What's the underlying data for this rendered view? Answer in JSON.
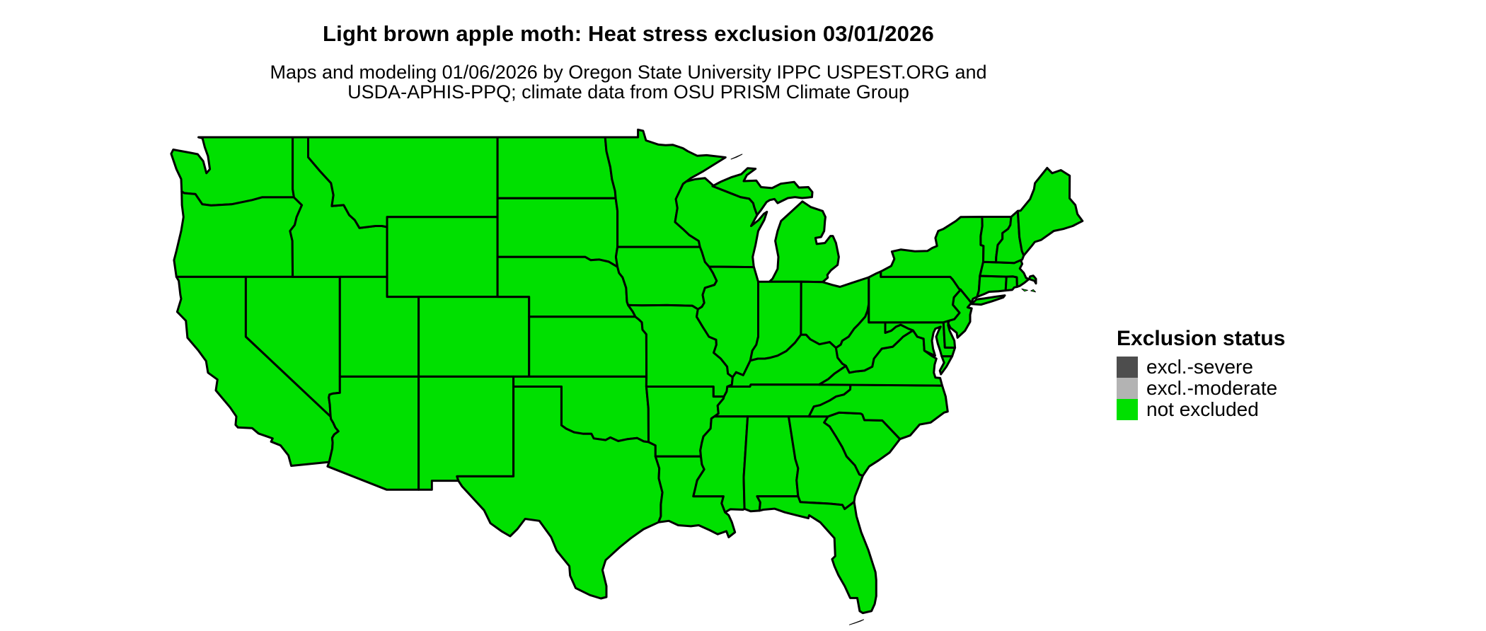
{
  "header": {
    "title": "Light brown apple moth: Heat stress exclusion 03/01/2026",
    "subtitle_line1": "Maps and modeling 01/06/2026 by Oregon State University IPPC USPEST.ORG and",
    "subtitle_line2": "USDA-APHIS-PPQ; climate data from OSU PRISM Climate Group"
  },
  "dates": {
    "map_date": "03/01/2026",
    "model_run_date": "01/06/2026"
  },
  "colors": {
    "background": "#ffffff",
    "state_border": "#000000",
    "excl_severe": "#4d4d4d",
    "excl_moderate": "#b3b3b3",
    "not_excluded": "#00e000"
  },
  "legend": {
    "title": "Exclusion status",
    "items": [
      {
        "label": "excl.-severe",
        "color": "#4d4d4d"
      },
      {
        "label": "excl.-moderate",
        "color": "#b3b3b3"
      },
      {
        "label": "not excluded",
        "color": "#00e000"
      }
    ]
  },
  "chart_data": {
    "type": "map",
    "subtype": "choropleth",
    "region": "contiguous United States",
    "unit": "state",
    "title": "Light brown apple moth: Heat stress exclusion 03/01/2026",
    "legend_title": "Exclusion status",
    "categories": [
      "excl.-severe",
      "excl.-moderate",
      "not excluded"
    ],
    "category_colors": [
      "#4d4d4d",
      "#b3b3b3",
      "#00e000"
    ],
    "summary": "Every mapped state is shown in the 'not excluded' (green) class"
  },
  "map": {
    "default_status": "not excluded",
    "states": [
      {
        "name": "washington",
        "status": "not excluded"
      },
      {
        "name": "oregon",
        "status": "not excluded"
      },
      {
        "name": "california",
        "status": "not excluded"
      },
      {
        "name": "nevada",
        "status": "not excluded"
      },
      {
        "name": "idaho",
        "status": "not excluded"
      },
      {
        "name": "montana",
        "status": "not excluded"
      },
      {
        "name": "wyoming",
        "status": "not excluded"
      },
      {
        "name": "utah",
        "status": "not excluded"
      },
      {
        "name": "colorado",
        "status": "not excluded"
      },
      {
        "name": "arizona",
        "status": "not excluded"
      },
      {
        "name": "new-mexico",
        "status": "not excluded"
      },
      {
        "name": "north-dakota",
        "status": "not excluded"
      },
      {
        "name": "south-dakota",
        "status": "not excluded"
      },
      {
        "name": "nebraska",
        "status": "not excluded"
      },
      {
        "name": "kansas",
        "status": "not excluded"
      },
      {
        "name": "oklahoma",
        "status": "not excluded"
      },
      {
        "name": "texas",
        "status": "not excluded"
      },
      {
        "name": "minnesota",
        "status": "not excluded"
      },
      {
        "name": "iowa",
        "status": "not excluded"
      },
      {
        "name": "missouri",
        "status": "not excluded"
      },
      {
        "name": "arkansas",
        "status": "not excluded"
      },
      {
        "name": "louisiana",
        "status": "not excluded"
      },
      {
        "name": "wisconsin",
        "status": "not excluded"
      },
      {
        "name": "illinois",
        "status": "not excluded"
      },
      {
        "name": "michigan",
        "status": "not excluded"
      },
      {
        "name": "indiana",
        "status": "not excluded"
      },
      {
        "name": "ohio",
        "status": "not excluded"
      },
      {
        "name": "kentucky",
        "status": "not excluded"
      },
      {
        "name": "tennessee",
        "status": "not excluded"
      },
      {
        "name": "mississippi",
        "status": "not excluded"
      },
      {
        "name": "alabama",
        "status": "not excluded"
      },
      {
        "name": "georgia",
        "status": "not excluded"
      },
      {
        "name": "florida",
        "status": "not excluded"
      },
      {
        "name": "south-carolina",
        "status": "not excluded"
      },
      {
        "name": "north-carolina",
        "status": "not excluded"
      },
      {
        "name": "virginia",
        "status": "not excluded"
      },
      {
        "name": "west-virginia",
        "status": "not excluded"
      },
      {
        "name": "maryland",
        "status": "not excluded"
      },
      {
        "name": "delaware",
        "status": "not excluded"
      },
      {
        "name": "new-jersey",
        "status": "not excluded"
      },
      {
        "name": "pennsylvania",
        "status": "not excluded"
      },
      {
        "name": "new-york",
        "status": "not excluded"
      },
      {
        "name": "connecticut",
        "status": "not excluded"
      },
      {
        "name": "rhode-island",
        "status": "not excluded"
      },
      {
        "name": "massachusetts",
        "status": "not excluded"
      },
      {
        "name": "vermont",
        "status": "not excluded"
      },
      {
        "name": "new-hampshire",
        "status": "not excluded"
      },
      {
        "name": "maine",
        "status": "not excluded"
      }
    ],
    "islets": [
      {
        "name": "florida-keys",
        "status": "not excluded"
      },
      {
        "name": "massachusetts-islands",
        "status": "not excluded"
      },
      {
        "name": "isle-royale",
        "status": "not excluded"
      }
    ]
  }
}
